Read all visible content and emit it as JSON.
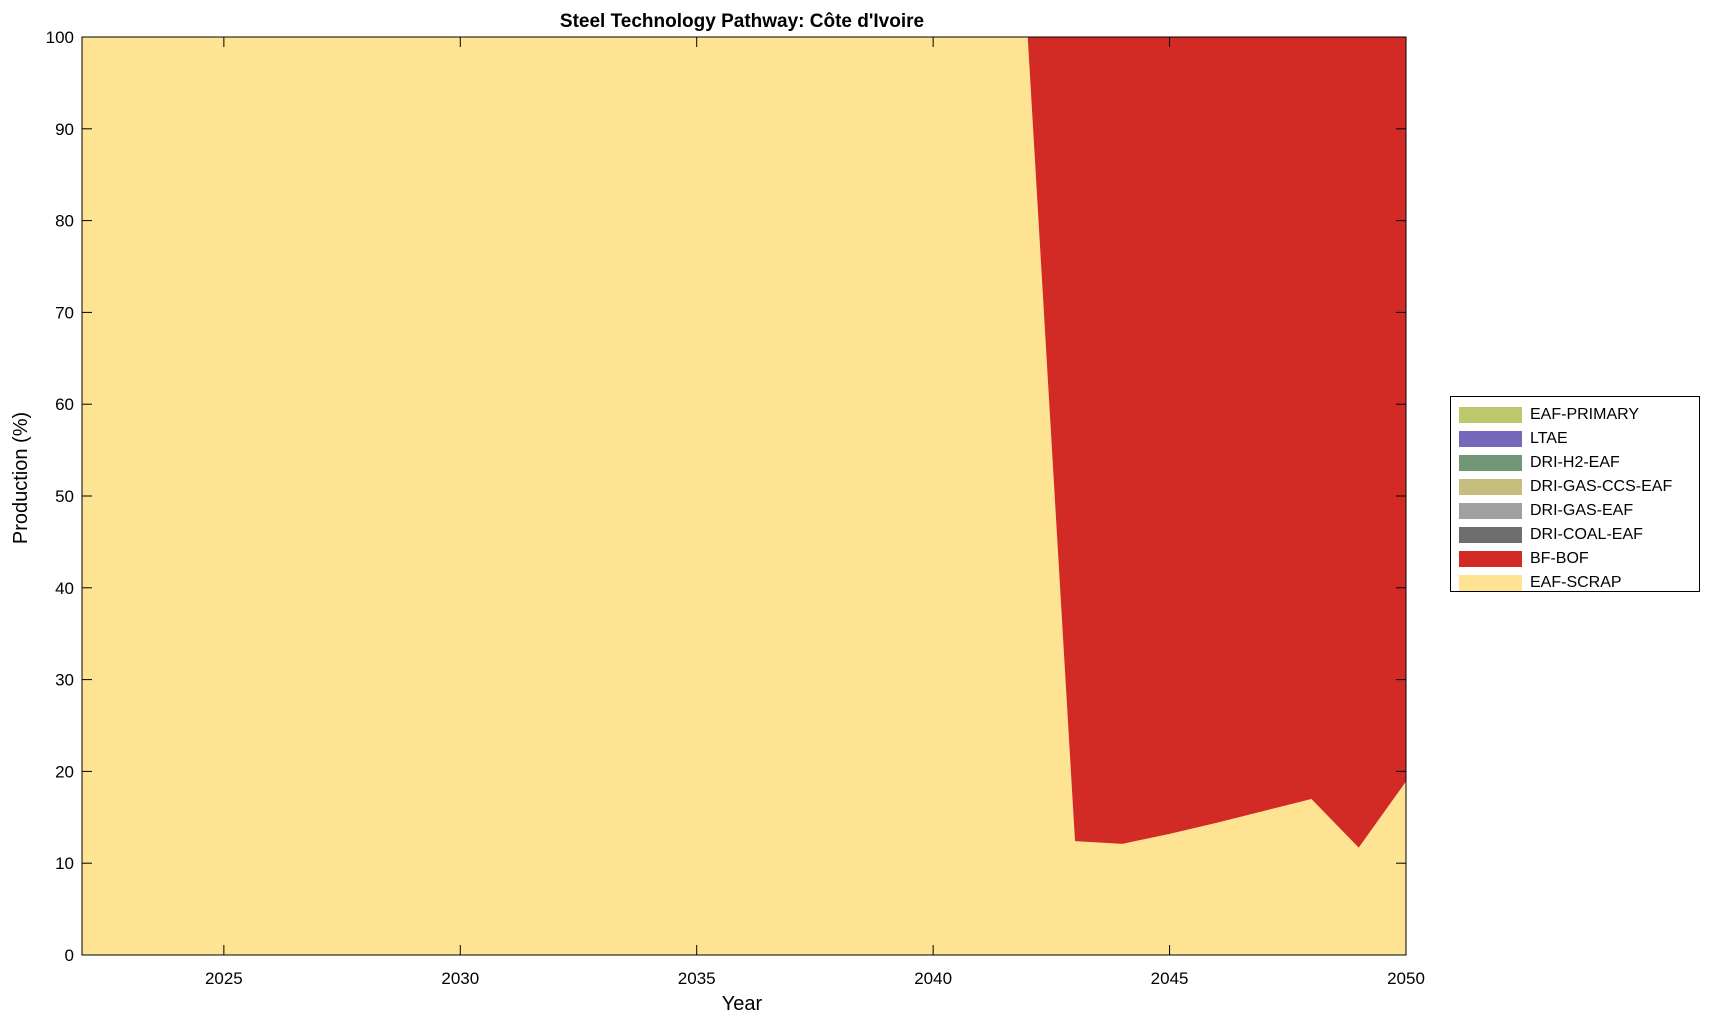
{
  "chart_data": {
    "type": "area",
    "stacked": true,
    "title": "Steel Technology Pathway: Côte d'Ivoire",
    "xlabel": "Year",
    "ylabel": "Production (%)",
    "xlim": [
      2022,
      2050
    ],
    "ylim": [
      0,
      100
    ],
    "xticks": [
      2025,
      2030,
      2035,
      2040,
      2045,
      2050
    ],
    "yticks": [
      0,
      10,
      20,
      30,
      40,
      50,
      60,
      70,
      80,
      90,
      100
    ],
    "grid": false,
    "legend_position": "right",
    "x": [
      2022,
      2023,
      2024,
      2025,
      2026,
      2027,
      2028,
      2029,
      2030,
      2031,
      2032,
      2033,
      2034,
      2035,
      2036,
      2037,
      2038,
      2039,
      2040,
      2041,
      2042,
      2043,
      2044,
      2045,
      2046,
      2047,
      2048,
      2049,
      2050
    ],
    "series": [
      {
        "name": "EAF-SCRAP",
        "color": "#FEE393",
        "values": [
          100,
          100,
          100,
          100,
          100,
          100,
          100,
          100,
          100,
          100,
          100,
          100,
          100,
          100,
          100,
          100,
          100,
          100,
          100,
          100,
          100,
          12.4,
          12.1,
          13.2,
          14.4,
          15.7,
          17.0,
          11.7,
          18.9
        ]
      },
      {
        "name": "BF-BOF",
        "color": "#D22A24",
        "values": [
          0,
          0,
          0,
          0,
          0,
          0,
          0,
          0,
          0,
          0,
          0,
          0,
          0,
          0,
          0,
          0,
          0,
          0,
          0,
          0,
          0,
          87.6,
          87.9,
          86.8,
          85.6,
          84.3,
          83.0,
          88.3,
          81.1
        ]
      },
      {
        "name": "DRI-COAL-EAF",
        "color": "#6E6E6E",
        "values": [
          0,
          0,
          0,
          0,
          0,
          0,
          0,
          0,
          0,
          0,
          0,
          0,
          0,
          0,
          0,
          0,
          0,
          0,
          0,
          0,
          0,
          0,
          0,
          0,
          0,
          0,
          0,
          0,
          0
        ]
      },
      {
        "name": "DRI-GAS-EAF",
        "color": "#A0A0A0",
        "values": [
          0,
          0,
          0,
          0,
          0,
          0,
          0,
          0,
          0,
          0,
          0,
          0,
          0,
          0,
          0,
          0,
          0,
          0,
          0,
          0,
          0,
          0,
          0,
          0,
          0,
          0,
          0,
          0,
          0
        ]
      },
      {
        "name": "DRI-GAS-CCS-EAF",
        "color": "#C5BE7F",
        "values": [
          0,
          0,
          0,
          0,
          0,
          0,
          0,
          0,
          0,
          0,
          0,
          0,
          0,
          0,
          0,
          0,
          0,
          0,
          0,
          0,
          0,
          0,
          0,
          0,
          0,
          0,
          0,
          0,
          0
        ]
      },
      {
        "name": "DRI-H2-EAF",
        "color": "#729777",
        "values": [
          0,
          0,
          0,
          0,
          0,
          0,
          0,
          0,
          0,
          0,
          0,
          0,
          0,
          0,
          0,
          0,
          0,
          0,
          0,
          0,
          0,
          0,
          0,
          0,
          0,
          0,
          0,
          0,
          0
        ]
      },
      {
        "name": "LTAE",
        "color": "#7467BC",
        "values": [
          0,
          0,
          0,
          0,
          0,
          0,
          0,
          0,
          0,
          0,
          0,
          0,
          0,
          0,
          0,
          0,
          0,
          0,
          0,
          0,
          0,
          0,
          0,
          0,
          0,
          0,
          0,
          0,
          0
        ]
      },
      {
        "name": "EAF-PRIMARY",
        "color": "#BDC76C",
        "values": [
          0,
          0,
          0,
          0,
          0,
          0,
          0,
          0,
          0,
          0,
          0,
          0,
          0,
          0,
          0,
          0,
          0,
          0,
          0,
          0,
          0,
          0,
          0,
          0,
          0,
          0,
          0,
          0,
          0
        ]
      }
    ],
    "legend_order": [
      "EAF-PRIMARY",
      "LTAE",
      "DRI-H2-EAF",
      "DRI-GAS-CCS-EAF",
      "DRI-GAS-EAF",
      "DRI-COAL-EAF",
      "BF-BOF",
      "EAF-SCRAP"
    ]
  }
}
